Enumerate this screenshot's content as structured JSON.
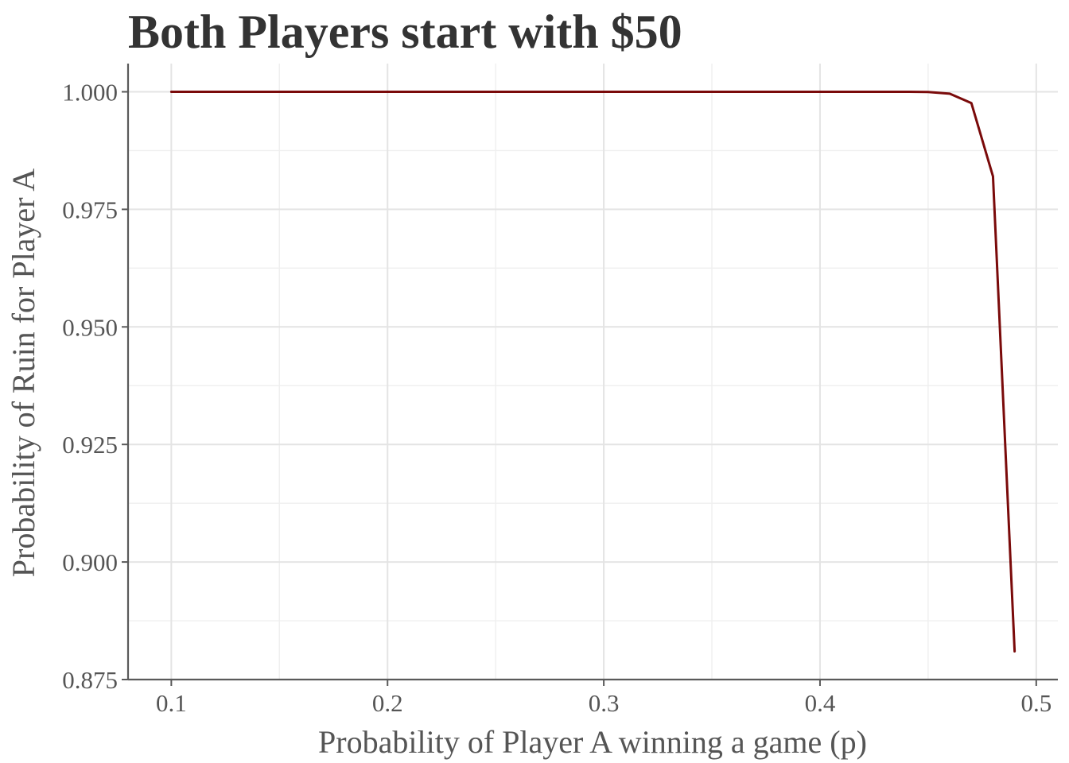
{
  "chart_data": {
    "type": "line",
    "title": "Both Players start with $50",
    "xlabel": "Probability of Player A winning a game (p)",
    "ylabel": "Probability of Ruin for Player A",
    "xlim": [
      0.08,
      0.51
    ],
    "ylim": [
      0.875,
      1.006
    ],
    "x_ticks": [
      0.1,
      0.2,
      0.3,
      0.4,
      0.5
    ],
    "x_tick_labels": [
      "0.1",
      "0.2",
      "0.3",
      "0.4",
      "0.5"
    ],
    "y_ticks": [
      0.875,
      0.9,
      0.925,
      0.95,
      0.975,
      1.0
    ],
    "y_tick_labels": [
      "0.875",
      "0.900",
      "0.925",
      "0.950",
      "0.975",
      "1.000"
    ],
    "x_minor_ticks": [
      0.15,
      0.25,
      0.35,
      0.45
    ],
    "y_minor_ticks": [
      0.8875,
      0.9125,
      0.9375,
      0.9625,
      0.9875
    ],
    "grid": true,
    "series": [
      {
        "color": "#7a0a0a",
        "x": [
          0.1,
          0.2,
          0.3,
          0.4,
          0.44,
          0.45,
          0.46,
          0.47,
          0.48,
          0.49
        ],
        "y": [
          1.0,
          1.0,
          1.0,
          1.0,
          1.0,
          0.99995,
          0.9996,
          0.9976,
          0.982,
          0.881
        ]
      }
    ]
  }
}
